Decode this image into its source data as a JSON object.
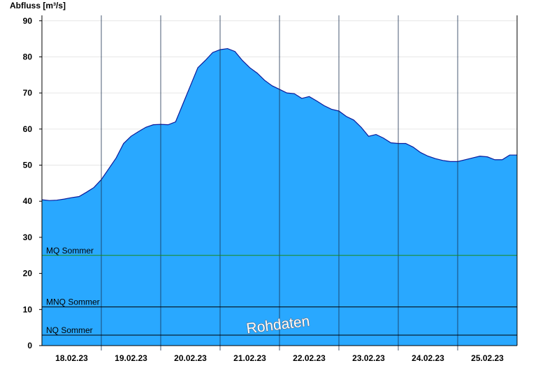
{
  "chart_data": {
    "type": "area",
    "title": "Abfluss [m³/s]",
    "categories": [
      null,
      null,
      null,
      null,
      "18.02.23",
      null,
      null,
      null,
      null,
      null,
      null,
      null,
      "19.02.23",
      null,
      null,
      null,
      null,
      null,
      null,
      null,
      "20.02.23",
      null,
      null,
      null,
      null,
      null,
      null,
      null,
      "21.02.23",
      null,
      null,
      null,
      null,
      null,
      null,
      null,
      "22.02.23",
      null,
      null,
      null,
      null,
      null,
      null,
      null,
      "23.02.23",
      null,
      null,
      null,
      null,
      null,
      null,
      null,
      "24.02.23",
      null,
      null,
      null,
      null,
      null,
      null,
      null,
      "25.02.23",
      null,
      null,
      null,
      null
    ],
    "values": [
      40.4,
      40.2,
      40.3,
      40.6,
      41,
      41.3,
      42.5,
      43.8,
      46,
      49,
      52,
      56,
      58,
      59.3,
      60.5,
      61.2,
      61.3,
      61.2,
      62,
      67,
      72,
      77,
      79,
      81.2,
      82,
      82.3,
      81.5,
      79,
      77,
      75.5,
      73.5,
      72,
      71,
      70,
      69.8,
      68.5,
      69,
      67.8,
      66.5,
      65.5,
      65,
      63.5,
      62.5,
      60.5,
      58,
      58.5,
      57.5,
      56.2,
      56,
      56,
      55,
      53.5,
      52.5,
      51.8,
      51.3,
      51,
      51,
      51.5,
      52,
      52.5,
      52.3,
      51.5,
      51.5,
      52.8,
      52.8
    ],
    "color": "#29a8ff",
    "line_color": "#0a1a9a",
    "ylim": [
      0,
      91.5
    ],
    "yticks": [
      0,
      10,
      20,
      30,
      40,
      50,
      60,
      70,
      80,
      90
    ],
    "grid": true,
    "reference_lines": [
      {
        "label": "MQ Sommer",
        "value": 25,
        "color": "#1a8a1a"
      },
      {
        "label": "MNQ Sommer",
        "value": 10.7,
        "color": "#000000"
      },
      {
        "label": "NQ Sommer",
        "value": 2.9,
        "color": "#000000"
      }
    ],
    "annotation": "Rohdaten"
  }
}
